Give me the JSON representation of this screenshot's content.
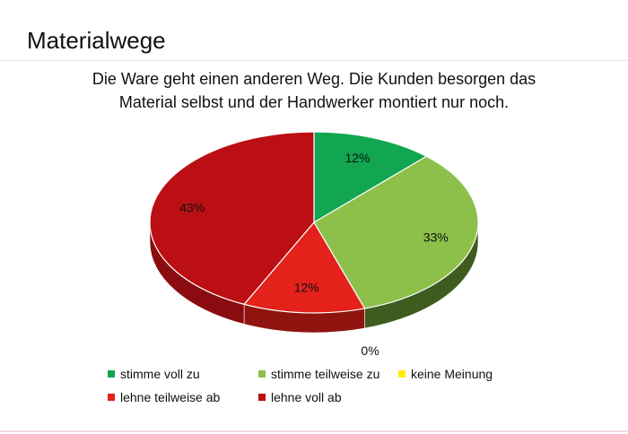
{
  "slide": {
    "title": "Materialwege"
  },
  "chart_data": {
    "type": "pie",
    "title_lines": [
      "Die Ware geht einen anderen Weg. Die Kunden besorgen das",
      "Material selbst und der Handwerker montiert nur noch."
    ],
    "categories": [
      "stimme voll zu",
      "stimme teilweise zu",
      "keine Meinung",
      "lehne teilweise ab",
      "lehne voll ab"
    ],
    "values": [
      12,
      33,
      0,
      12,
      43
    ],
    "labels": [
      "12%",
      "33%",
      "0%",
      "12%",
      "43%"
    ],
    "colors": [
      "#11a64f",
      "#8cc04b",
      "#ffee00",
      "#e4211a",
      "#bb0f14"
    ],
    "side_colors": [
      "#0b6e34",
      "#3f5c20",
      "#a69a00",
      "#8f1410",
      "#8a0c10"
    ],
    "legend_position": "bottom",
    "style": "3d-pie"
  }
}
